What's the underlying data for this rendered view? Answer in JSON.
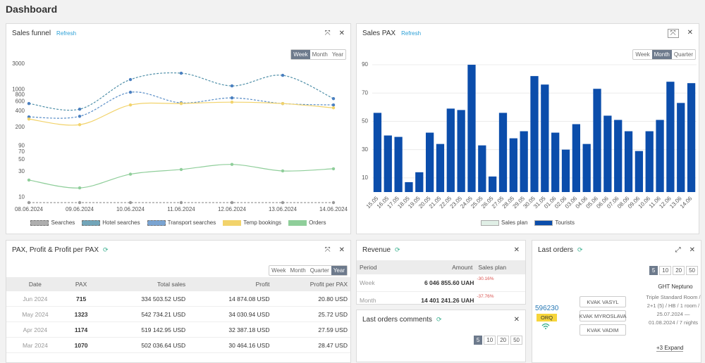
{
  "page": {
    "title": "Dashboard"
  },
  "chart_data": [
    {
      "type": "line",
      "title": "Sales funnel",
      "log_scale": true,
      "grid": false,
      "categories": [
        "08.06.2024",
        "09.06.2024",
        "10.06.2024",
        "11.06.2024",
        "12.06.2024",
        "13.06.2024",
        "14.06.2024"
      ],
      "ylim": [
        8,
        3000
      ],
      "yticks": [
        10,
        30,
        50,
        70,
        90,
        200,
        400,
        600,
        800,
        1000,
        3000
      ],
      "series": [
        {
          "name": "Searches",
          "color": "#9a9a9a",
          "dashed": true,
          "values": [
            8,
            8,
            8,
            8,
            8,
            8,
            8
          ]
        },
        {
          "name": "Hotel searches",
          "color": "#4f8fa8",
          "dashed": true,
          "values": [
            553,
            435,
            1545,
            2028,
            1178,
            1849,
            684
          ]
        },
        {
          "name": "Transport searches",
          "color": "#5a8ec7",
          "dashed": true,
          "values": [
            312,
            321,
            897,
            570,
            705,
            553,
            521
          ]
        },
        {
          "name": "Temp bookings",
          "color": "#f2d36b",
          "dashed": false,
          "values": [
            285,
            224,
            521,
            553,
            588,
            553,
            461
          ]
        },
        {
          "name": "Orders",
          "color": "#8fce9a",
          "dashed": false,
          "values": [
            21,
            15,
            27,
            33,
            41,
            31,
            34
          ]
        }
      ]
    },
    {
      "type": "bar",
      "title": "Sales PAX",
      "grid": true,
      "categories": [
        "15.05",
        "16.05",
        "17.05",
        "18.05",
        "19.05",
        "20.05",
        "21.05",
        "22.05",
        "23.05",
        "24.05",
        "25.05",
        "26.05",
        "27.05",
        "28.05",
        "29.05",
        "30.05",
        "31.05",
        "01.06",
        "02.06",
        "03.06",
        "04.06",
        "05.06",
        "06.06",
        "07.06",
        "08.06",
        "09.06",
        "10.06",
        "11.06",
        "12.06",
        "13.06",
        "14.06"
      ],
      "ylim": [
        0,
        95
      ],
      "yticks": [
        10,
        30,
        50,
        70,
        90
      ],
      "series": [
        {
          "name": "Sales plan",
          "color": "#e0efe6",
          "values": [
            null,
            null,
            null,
            null,
            null,
            null,
            null,
            null,
            null,
            null,
            null,
            null,
            null,
            null,
            null,
            null,
            null,
            null,
            null,
            null,
            null,
            null,
            null,
            null,
            null,
            null,
            null,
            null,
            null,
            null,
            null
          ]
        },
        {
          "name": "Tourists",
          "color": "#0b4dab",
          "values": [
            56,
            40,
            39,
            7,
            14,
            42,
            34,
            59,
            58,
            90,
            33,
            11,
            56,
            38,
            43,
            82,
            76,
            42,
            30,
            48,
            34,
            73,
            54,
            51,
            43,
            29,
            43,
            51,
            78,
            63,
            77
          ]
        }
      ]
    }
  ],
  "panels": {
    "sales_funnel": {
      "refresh": "Refresh",
      "periods": [
        "Week",
        "Month",
        "Year"
      ],
      "active_period": "Week"
    },
    "sales_pax": {
      "refresh": "Refresh",
      "periods": [
        "Week",
        "Month",
        "Quarter"
      ],
      "active_period": "Month"
    },
    "pax_profit": {
      "title": "PAX, Profit & Profit per PAX",
      "periods": [
        "Week",
        "Month",
        "Quarter",
        "Year"
      ],
      "active_period": "Year",
      "table": {
        "columns": [
          "Date",
          "PAX",
          "Total sales",
          "Profit",
          "Profit per PAX"
        ],
        "rows": [
          [
            "Jun 2024",
            715,
            "334 503.52 USD",
            "14 874.08 USD",
            "20.80 USD"
          ],
          [
            "May 2024",
            1323,
            "542 734.21 USD",
            "34 030.94 USD",
            "25.72 USD"
          ],
          [
            "Apr 2024",
            1174,
            "519 142.95 USD",
            "32 387.18 USD",
            "27.59 USD"
          ],
          [
            "Mar 2024",
            1070,
            "502 036.64 USD",
            "30 464.16 USD",
            "28.47 USD"
          ]
        ]
      }
    },
    "revenue": {
      "title": "Revenue",
      "table": {
        "columns": [
          "Period",
          "Amount",
          "Sales plan"
        ],
        "rows": [
          [
            "Week",
            "6 046 855.60 UAH",
            "-30.16%"
          ],
          [
            "Month",
            "14 401 241.26 UAH",
            "-37.76%"
          ]
        ]
      }
    },
    "comments": {
      "title": "Last orders comments",
      "page_sizes": [
        5,
        10,
        20,
        50
      ],
      "active_page_size": 5
    },
    "last_orders": {
      "title": "Last orders",
      "page_sizes": [
        5,
        10,
        20,
        50
      ],
      "active_page_size": 5,
      "orders": [
        {
          "id": "596230",
          "status": "ORQ",
          "tourists": [
            "KVAK VASYL",
            "KVAK MYROSLAVA",
            "KVAK VADIM"
          ],
          "hotel": "GHT Neptuno",
          "details": "Triple Standard Room / 2+1 (5) / HB / 1 room / 25.07.2024 — 01.08.2024 / 7 nights",
          "expand": "+3 Expand"
        }
      ]
    }
  }
}
